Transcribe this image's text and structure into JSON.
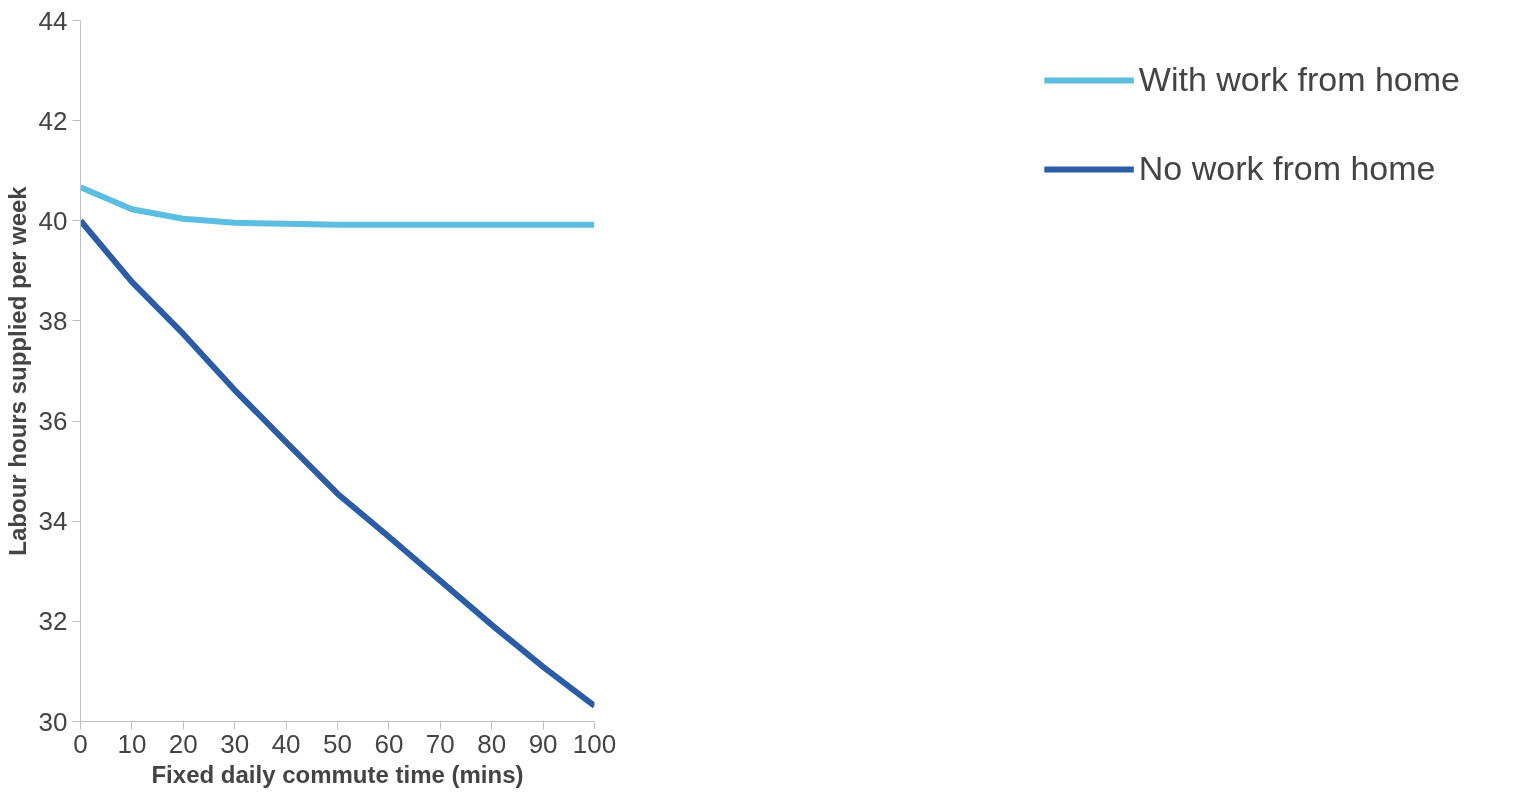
{
  "chart_data": {
    "type": "line",
    "xlabel": "Fixed daily commute time (mins)",
    "ylabel": "Labour hours supplied per week",
    "x": [
      0,
      10,
      20,
      30,
      40,
      50,
      60,
      70,
      80,
      90,
      100
    ],
    "series": [
      {
        "name": "With work from home",
        "color": "#5bbde0",
        "values": [
          40.67,
          40.23,
          40.04,
          39.96,
          39.94,
          39.92,
          39.92,
          39.92,
          39.92,
          39.92,
          39.92
        ]
      },
      {
        "name": "No work from home",
        "color": "#2b5ca4",
        "values": [
          40.0,
          38.78,
          37.74,
          36.62,
          35.58,
          34.55,
          33.69,
          32.81,
          31.93,
          31.09,
          30.31
        ]
      }
    ],
    "xlim": [
      0,
      100
    ],
    "ylim": [
      30,
      44
    ],
    "xticks": [
      0,
      10,
      20,
      30,
      40,
      50,
      60,
      70,
      80,
      90,
      100
    ],
    "yticks": [
      30,
      32,
      34,
      36,
      38,
      40,
      42,
      44
    ],
    "grid": false,
    "legend": "right",
    "marker": "none",
    "line_style": "solid"
  }
}
